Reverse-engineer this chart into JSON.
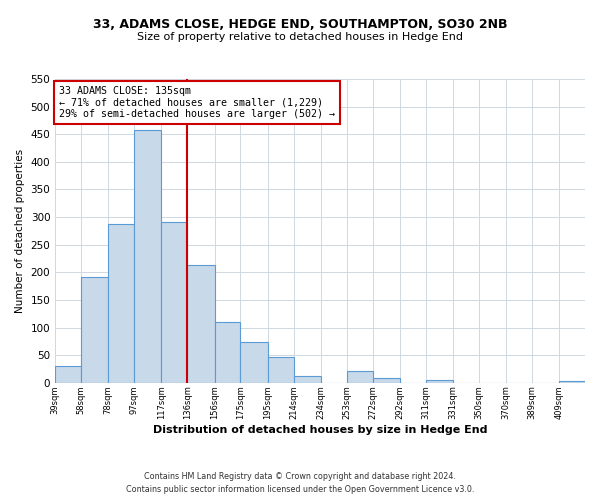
{
  "title": "33, ADAMS CLOSE, HEDGE END, SOUTHAMPTON, SO30 2NB",
  "subtitle": "Size of property relative to detached houses in Hedge End",
  "xlabel": "Distribution of detached houses by size in Hedge End",
  "ylabel": "Number of detached properties",
  "bar_color": "#c8d9ea",
  "bar_edge_color": "#5b9bd5",
  "vline_x": 136,
  "vline_color": "#cc0000",
  "annotation_title": "33 ADAMS CLOSE: 135sqm",
  "annotation_line1": "← 71% of detached houses are smaller (1,229)",
  "annotation_line2": "29% of semi-detached houses are larger (502) →",
  "annotation_box_color": "#cc0000",
  "footer1": "Contains HM Land Registry data © Crown copyright and database right 2024.",
  "footer2": "Contains public sector information licensed under the Open Government Licence v3.0.",
  "bins": [
    39,
    58,
    78,
    97,
    117,
    136,
    156,
    175,
    195,
    214,
    234,
    253,
    272,
    292,
    311,
    331,
    350,
    370,
    389,
    409,
    428
  ],
  "counts": [
    30,
    192,
    287,
    458,
    292,
    213,
    110,
    74,
    47,
    13,
    0,
    21,
    8,
    0,
    5,
    0,
    0,
    0,
    0,
    3
  ],
  "ylim": [
    0,
    550
  ],
  "yticks": [
    0,
    50,
    100,
    150,
    200,
    250,
    300,
    350,
    400,
    450,
    500,
    550
  ],
  "bg_color": "#ffffff",
  "grid_color": "#d0d8e0"
}
